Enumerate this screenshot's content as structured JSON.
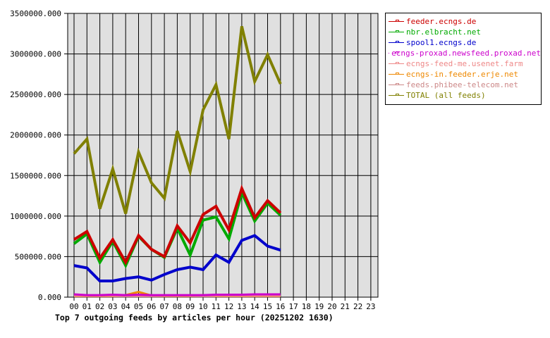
{
  "chart_data": {
    "type": "line",
    "title": "Top 7 outgoing feeds by articles per hour (20251202 1630)",
    "xlabel": "",
    "ylabel": "",
    "ylim": [
      0,
      3500000
    ],
    "yticks": [
      "0.000",
      "500000.000",
      "1000000.000",
      "1500000.000",
      "2000000.000",
      "2500000.000",
      "3000000.000",
      "3500000.000"
    ],
    "categories": [
      "00",
      "01",
      "02",
      "03",
      "04",
      "05",
      "06",
      "07",
      "08",
      "09",
      "10",
      "11",
      "12",
      "13",
      "14",
      "15",
      "16",
      "17",
      "18",
      "19",
      "20",
      "21",
      "22",
      "23"
    ],
    "grid": true,
    "legend_position": "right",
    "series": [
      {
        "name": "feeder.ecngs.de",
        "color": "#cc0000",
        "values": [
          710000,
          810000,
          480000,
          710000,
          430000,
          760000,
          590000,
          500000,
          880000,
          670000,
          1020000,
          1120000,
          830000,
          1340000,
          980000,
          1190000,
          1040000
        ]
      },
      {
        "name": "nbr.elbracht.net",
        "color": "#00aa00",
        "values": [
          660000,
          780000,
          430000,
          690000,
          390000,
          750000,
          590000,
          490000,
          850000,
          520000,
          950000,
          990000,
          720000,
          1290000,
          940000,
          1160000,
          1010000
        ]
      },
      {
        "name": "spool1.ecngs.de",
        "color": "#0000cc",
        "values": [
          390000,
          360000,
          200000,
          200000,
          230000,
          250000,
          210000,
          280000,
          340000,
          370000,
          340000,
          520000,
          430000,
          700000,
          760000,
          630000,
          580000
        ]
      },
      {
        "name": "ecngs-proxad.newsfeed.proxad.net",
        "color": "#cc00cc",
        "values": [
          35000,
          25000,
          25000,
          30000,
          25000,
          30000,
          25000,
          25000,
          25000,
          25000,
          25000,
          30000,
          30000,
          30000,
          35000,
          35000,
          35000
        ]
      },
      {
        "name": "ecngs-feed-me.usenet.farm",
        "color": "#ee8888",
        "values": [
          18000,
          18000,
          18000,
          18000,
          18000,
          18000,
          18000,
          18000,
          18000,
          18000,
          18000,
          18000,
          18000,
          18000,
          18000,
          18000,
          18000
        ]
      },
      {
        "name": "ecngs-in.feeder.erje.net",
        "color": "#ee8800",
        "values": [
          15000,
          15000,
          15000,
          15000,
          25000,
          65000,
          20000,
          15000,
          15000,
          15000,
          25000,
          15000,
          15000,
          15000,
          15000,
          15000,
          15000
        ]
      },
      {
        "name": "feeds.phibee-telecom.net",
        "color": "#cc8888",
        "values": [
          12000,
          12000,
          12000,
          12000,
          12000,
          12000,
          12000,
          12000,
          12000,
          12000,
          12000,
          12000,
          12000,
          12000,
          12000,
          12000,
          12000
        ]
      },
      {
        "name": "TOTAL (all feeds)",
        "color": "#808000",
        "values": [
          1770000,
          1950000,
          1090000,
          1580000,
          1030000,
          1790000,
          1410000,
          1220000,
          2050000,
          1550000,
          2310000,
          2620000,
          1950000,
          3340000,
          2660000,
          2990000,
          2630000
        ]
      }
    ]
  },
  "legend": {
    "items": [
      {
        "label": "feeder.ecngs.de",
        "color": "#cc0000"
      },
      {
        "label": "nbr.elbracht.net",
        "color": "#00aa00"
      },
      {
        "label": "spool1.ecngs.de",
        "color": "#0000cc"
      },
      {
        "label": "ecngs-proxad.newsfeed.proxad.net",
        "color": "#cc00cc"
      },
      {
        "label": "ecngs-feed-me.usenet.farm",
        "color": "#ee8888"
      },
      {
        "label": "ecngs-in.feeder.erje.net",
        "color": "#ee8800"
      },
      {
        "label": "feeds.phibee-telecom.net",
        "color": "#cc8888"
      },
      {
        "label": "TOTAL (all feeds)",
        "color": "#808000"
      }
    ]
  }
}
